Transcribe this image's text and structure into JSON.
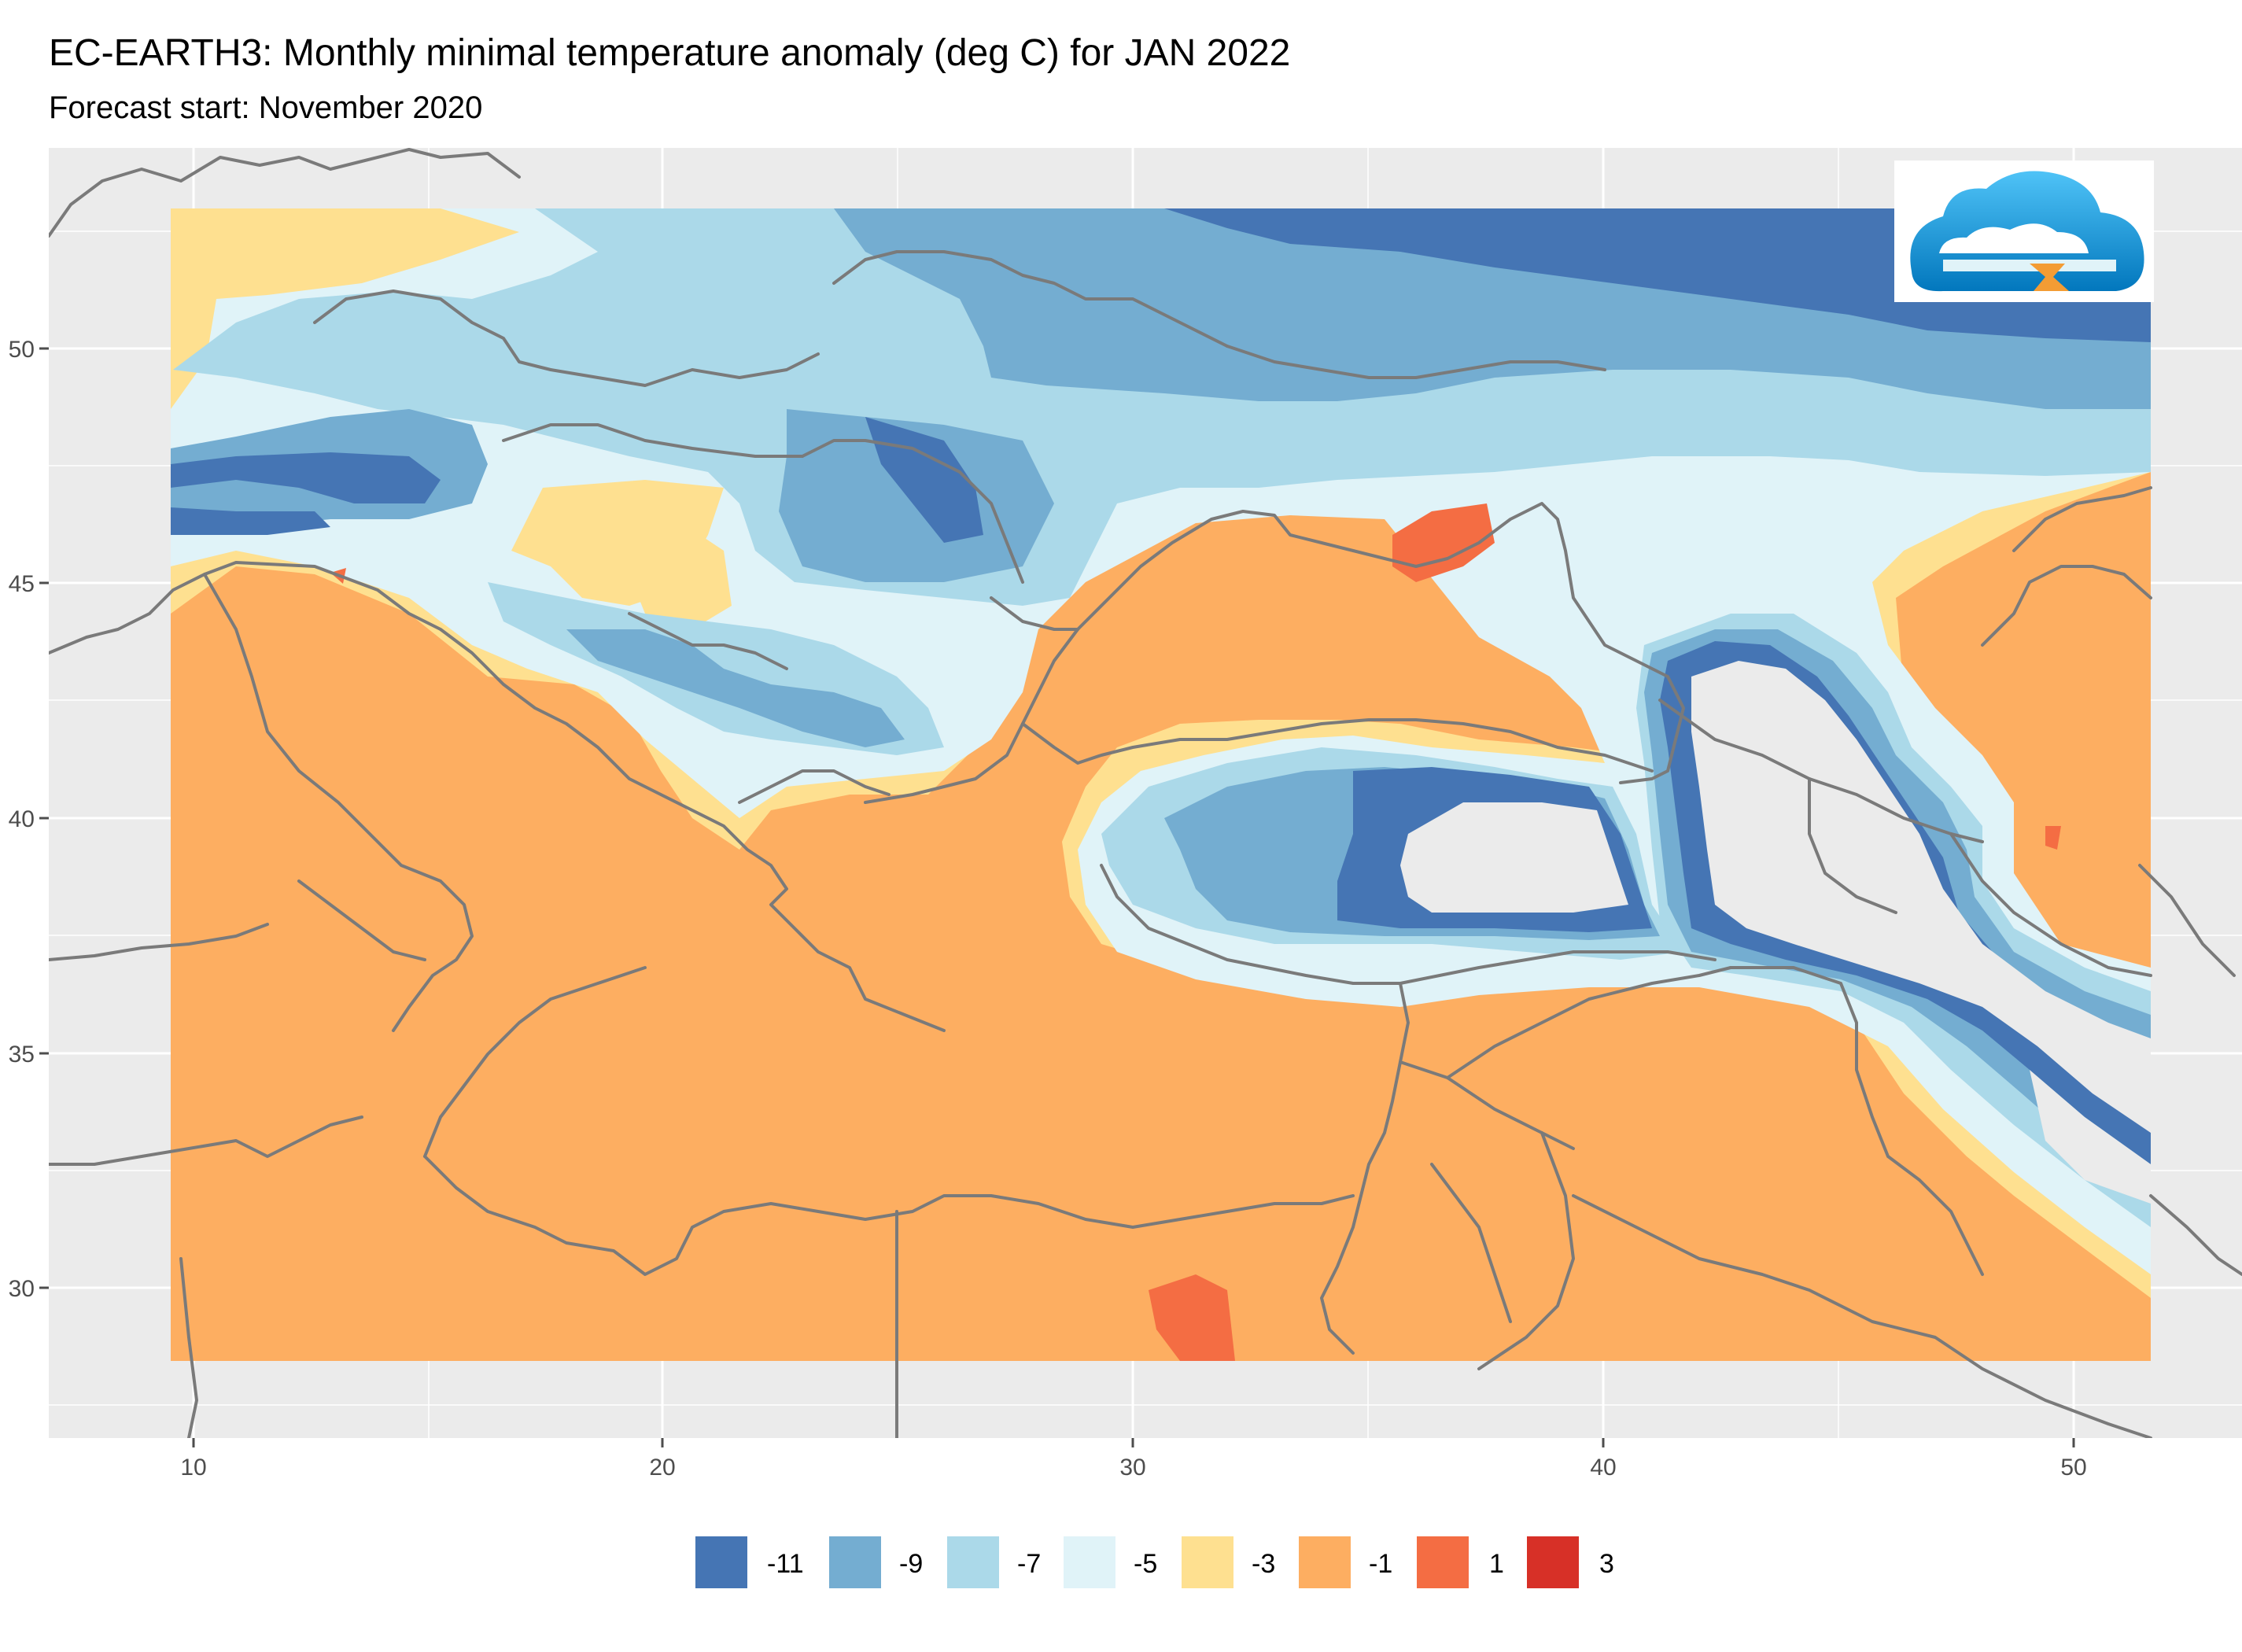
{
  "header": {
    "title": "EC-EARTH3: Monthly minimal temperature anomaly (deg C) for JAN 2022",
    "subtitle": "Forecast start: November 2020"
  },
  "map": {
    "type": "contour-map",
    "lon_range": [
      7,
      52.5
    ],
    "lat_range": [
      26.8,
      53.5
    ],
    "x_ticks": [
      10,
      20,
      30,
      40,
      50
    ],
    "y_ticks": [
      30,
      35,
      40,
      45,
      50
    ],
    "x_tick_labels": [
      "10",
      "20",
      "30",
      "40",
      "50"
    ],
    "y_tick_labels": [
      "30",
      "35",
      "40",
      "45",
      "50"
    ],
    "panel_background": "#ebebeb",
    "grid_color": "#ffffff",
    "border_color": "#7a7a7a",
    "logo": "cloud-logo"
  },
  "legend": {
    "items": [
      {
        "label": "-11",
        "color": "#4575b4"
      },
      {
        "label": "-9",
        "color": "#74add1"
      },
      {
        "label": "-7",
        "color": "#abd9e9"
      },
      {
        "label": "-5",
        "color": "#e0f3f8"
      },
      {
        "label": "-3",
        "color": "#fee090"
      },
      {
        "label": "-1",
        "color": "#fdae61"
      },
      {
        "label": "1",
        "color": "#f46d43"
      },
      {
        "label": "3",
        "color": "#d73027"
      }
    ]
  }
}
